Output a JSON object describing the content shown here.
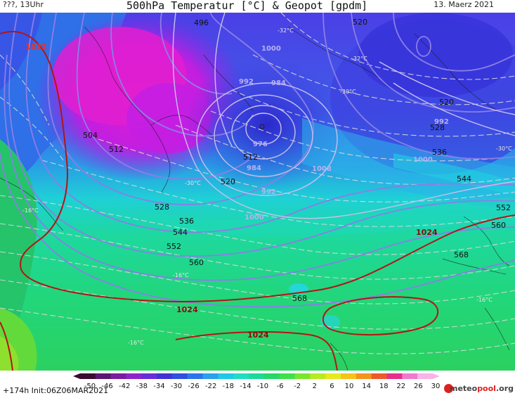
{
  "header": {
    "left": "???, 13Uhr",
    "title": "500hPa Temperatur [°C] & Geopot [gpdm]",
    "date": "13. Maerz 2021"
  },
  "footer": {
    "run": "+174h  Init:06Z06MAR2021",
    "logo_main": "meteo",
    "logo_accent": "pool",
    "logo_tld": ".org"
  },
  "legend": {
    "ticks": [
      "-50",
      "-46",
      "-42",
      "-38",
      "-34",
      "-30",
      "-26",
      "-22",
      "-18",
      "-14",
      "-10",
      "-6",
      "-2",
      "2",
      "6",
      "10",
      "14",
      "18",
      "22",
      "26",
      "30"
    ],
    "colors": [
      "#3a0a30",
      "#5a1670",
      "#7a1c9e",
      "#8e24c8",
      "#6a2ed8",
      "#3f33d6",
      "#2f4fe0",
      "#2d75ea",
      "#2aa0ee",
      "#20c8e6",
      "#1fdcc4",
      "#1ed89a",
      "#27d76a",
      "#3fe04a",
      "#7be52c",
      "#b8ea22",
      "#e8e81e",
      "#f6c21c",
      "#f4941c",
      "#ee5a2a",
      "#e52f8a",
      "#f07ad0",
      "#f8b4e8"
    ]
  },
  "map": {
    "geopot_labels": [
      {
        "t": "496"
      },
      {
        "t": "504"
      },
      {
        "t": "512"
      },
      {
        "t": "512"
      },
      {
        "t": "520"
      },
      {
        "t": "520"
      },
      {
        "t": "520"
      },
      {
        "t": "528"
      },
      {
        "t": "528"
      },
      {
        "t": "536"
      },
      {
        "t": "536"
      },
      {
        "t": "544"
      },
      {
        "t": "544"
      },
      {
        "t": "552"
      },
      {
        "t": "552"
      },
      {
        "t": "560"
      },
      {
        "t": "560"
      },
      {
        "t": "568"
      },
      {
        "t": "568"
      }
    ],
    "pressure_labels": [
      {
        "t": "1000"
      },
      {
        "t": "1000"
      },
      {
        "t": "1000"
      },
      {
        "t": "992"
      },
      {
        "t": "992"
      },
      {
        "t": "984"
      },
      {
        "t": "976"
      },
      {
        "t": "992"
      },
      {
        "t": "1008"
      },
      {
        "t": "984"
      }
    ],
    "slp_labels": [
      {
        "t": "1024"
      },
      {
        "t": "1024"
      },
      {
        "t": "1024"
      },
      {
        "t": "1032"
      }
    ],
    "temp_labels": [
      {
        "t": "-32°C"
      },
      {
        "t": "-32°C"
      },
      {
        "t": "-30°C"
      },
      {
        "t": "-30°C"
      },
      {
        "t": "-30°C"
      },
      {
        "t": "-16°C"
      },
      {
        "t": "-16°C"
      },
      {
        "t": "-16°C"
      },
      {
        "t": "-16°C"
      }
    ]
  }
}
